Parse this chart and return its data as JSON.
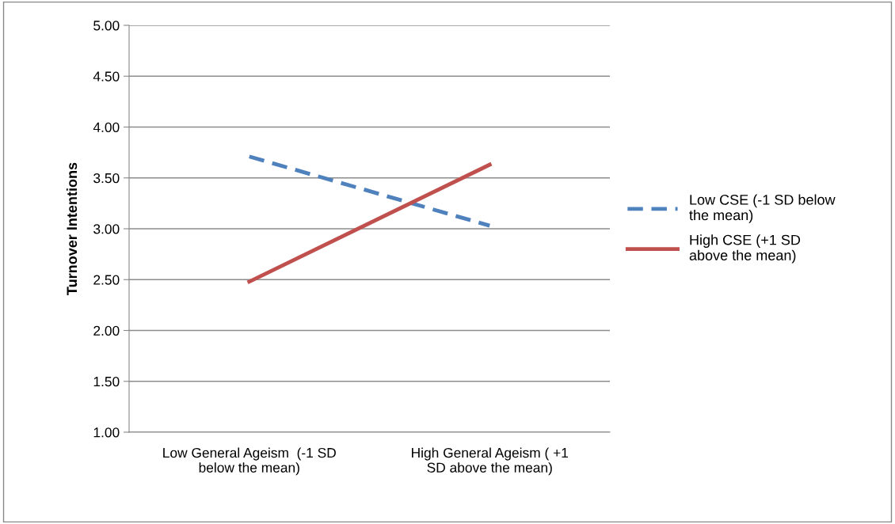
{
  "chart_data": {
    "type": "line",
    "ylabel": "Turnover Intentions",
    "categories": [
      "Low General Ageism  (-1 SD\nbelow the mean)",
      "High General Ageism ( +1\nSD above the mean)"
    ],
    "series": [
      {
        "name": "Low CSE (-1 SD below\nthe mean)",
        "color": "#4f81bd",
        "values": [
          3.71,
          3.03
        ],
        "line_style": "dashed"
      },
      {
        "name": "High CSE (+1 SD\nabove the mean)",
        "color": "#c0504d",
        "values": [
          2.48,
          3.63
        ],
        "line_style": "solid"
      }
    ],
    "ylim": [
      1,
      5
    ],
    "yticks": [
      {
        "value": 1,
        "label": "1.00"
      },
      {
        "value": 1.5,
        "label": "1.50"
      },
      {
        "value": 2,
        "label": "2.00"
      },
      {
        "value": 2.5,
        "label": "2.50"
      },
      {
        "value": 3,
        "label": "3.00"
      },
      {
        "value": 3.5,
        "label": "3.50"
      },
      {
        "value": 4,
        "label": "4.00"
      },
      {
        "value": 4.5,
        "label": "4.50"
      },
      {
        "value": 5,
        "label": "5.00"
      }
    ],
    "grid": "y",
    "legend": "right",
    "marker": "none"
  }
}
